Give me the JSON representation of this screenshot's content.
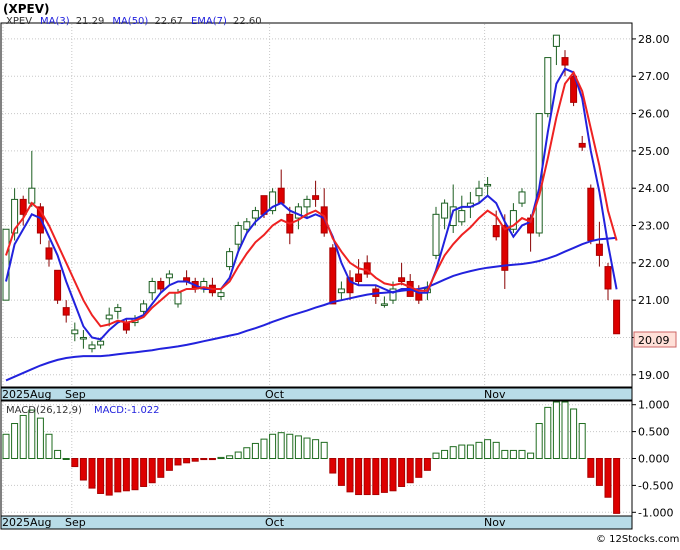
{
  "title": "(XPEV)",
  "price_panel": {
    "legend": {
      "symbol": "XPEV",
      "ma3_label": "MA(3)",
      "ma3_value": "21.29",
      "ma50_label": "MA(50)",
      "ma50_value": "22.67",
      "ema7_label": "EMA(7)",
      "ema7_value": "22.60"
    },
    "last_price_label": "20.09"
  },
  "macd_panel": {
    "legend": {
      "label": "MACD(26,12,9)",
      "value_label": "MACD:-1.022"
    }
  },
  "date_labels": [
    "2025Aug",
    "Sep",
    "Oct",
    "Nov"
  ],
  "credit": "© 12Stocks.com",
  "colors": {
    "up": "#2e7d32",
    "down": "#dd0000",
    "ma_fast": "#2222dd",
    "ema": "#ee2222",
    "macd_bar": "#1e6b1e",
    "macd_neg": "#dd0000",
    "axis_band": "#b8dce8",
    "grid": "#c8c8c8",
    "price_label_bg": "#ffe0d8"
  },
  "chart_data": [
    {
      "type": "candlestick",
      "panel": "price",
      "y_ticks": [
        19.0,
        20.0,
        21.0,
        22.0,
        23.0,
        24.0,
        25.0,
        26.0,
        27.0,
        28.0
      ],
      "ylim": [
        18.7,
        28.4
      ],
      "ylabel_position": "right",
      "ohlc": [
        [
          21.0,
          22.9,
          21.0,
          22.9
        ],
        [
          22.8,
          24.0,
          22.6,
          23.7
        ],
        [
          23.7,
          23.8,
          23.0,
          23.3
        ],
        [
          23.6,
          25.0,
          23.5,
          24.0
        ],
        [
          23.5,
          23.6,
          22.5,
          22.8
        ],
        [
          22.4,
          22.6,
          21.9,
          22.1
        ],
        [
          21.8,
          21.8,
          20.9,
          21.0
        ],
        [
          20.8,
          21.0,
          20.4,
          20.6
        ],
        [
          20.1,
          20.4,
          19.9,
          20.2
        ],
        [
          20.0,
          20.2,
          19.7,
          20.0
        ],
        [
          19.7,
          19.9,
          19.6,
          19.8
        ],
        [
          19.8,
          20.0,
          19.7,
          19.9
        ],
        [
          20.5,
          20.8,
          20.3,
          20.6
        ],
        [
          20.7,
          20.9,
          20.5,
          20.8
        ],
        [
          20.4,
          20.5,
          20.1,
          20.2
        ],
        [
          20.4,
          20.6,
          20.3,
          20.5
        ],
        [
          20.7,
          21.0,
          20.6,
          20.9
        ],
        [
          21.2,
          21.6,
          21.0,
          21.5
        ],
        [
          21.5,
          21.6,
          21.2,
          21.3
        ],
        [
          21.6,
          21.8,
          21.4,
          21.7
        ],
        [
          20.9,
          21.3,
          20.8,
          21.2
        ],
        [
          21.6,
          21.8,
          21.4,
          21.5
        ],
        [
          21.5,
          21.6,
          21.2,
          21.3
        ],
        [
          21.3,
          21.6,
          21.2,
          21.5
        ],
        [
          21.4,
          21.6,
          21.1,
          21.2
        ],
        [
          21.1,
          21.3,
          21.0,
          21.2
        ],
        [
          21.9,
          22.4,
          21.8,
          22.3
        ],
        [
          22.5,
          23.1,
          22.3,
          23.0
        ],
        [
          22.9,
          23.2,
          22.8,
          23.1
        ],
        [
          23.2,
          23.5,
          23.0,
          23.4
        ],
        [
          23.8,
          23.8,
          23.2,
          23.3
        ],
        [
          23.4,
          24.0,
          23.3,
          23.9
        ],
        [
          24.0,
          24.5,
          23.6,
          23.6
        ],
        [
          23.3,
          23.5,
          22.5,
          22.8
        ],
        [
          23.2,
          23.6,
          22.9,
          23.5
        ],
        [
          23.5,
          23.8,
          23.2,
          23.7
        ],
        [
          23.8,
          24.2,
          23.5,
          23.7
        ],
        [
          23.5,
          24.0,
          22.7,
          22.8
        ],
        [
          22.4,
          22.5,
          20.9,
          20.9
        ],
        [
          21.2,
          21.5,
          21.0,
          21.3
        ],
        [
          21.6,
          21.8,
          21.0,
          21.2
        ],
        [
          21.7,
          22.1,
          21.4,
          21.5
        ],
        [
          22.0,
          22.2,
          21.6,
          21.7
        ],
        [
          21.3,
          21.4,
          20.9,
          21.1
        ],
        [
          20.9,
          21.1,
          20.8,
          20.9
        ],
        [
          21.0,
          21.5,
          20.9,
          21.3
        ],
        [
          21.6,
          22.0,
          21.4,
          21.5
        ],
        [
          21.5,
          21.7,
          21.1,
          21.1
        ],
        [
          21.2,
          21.4,
          20.9,
          21.0
        ],
        [
          21.2,
          21.5,
          21.0,
          21.3
        ],
        [
          22.2,
          23.5,
          22.1,
          23.3
        ],
        [
          23.2,
          23.7,
          22.9,
          23.6
        ],
        [
          23.0,
          24.1,
          22.8,
          23.5
        ],
        [
          23.1,
          23.8,
          23.0,
          23.4
        ],
        [
          23.5,
          23.9,
          23.2,
          23.6
        ],
        [
          23.8,
          24.2,
          23.6,
          24.0
        ],
        [
          24.1,
          24.3,
          23.8,
          24.1
        ],
        [
          23.0,
          23.4,
          22.6,
          22.7
        ],
        [
          23.0,
          23.3,
          21.3,
          21.8
        ],
        [
          22.9,
          23.6,
          22.8,
          23.4
        ],
        [
          23.6,
          24.0,
          23.5,
          23.9
        ],
        [
          23.2,
          23.3,
          22.3,
          22.8
        ],
        [
          22.8,
          26.0,
          22.7,
          26.0
        ],
        [
          26.0,
          27.5,
          25.9,
          27.5
        ],
        [
          27.8,
          28.1,
          27.3,
          28.1
        ],
        [
          27.5,
          27.7,
          27.0,
          27.3
        ],
        [
          27.0,
          27.1,
          26.2,
          26.3
        ],
        [
          25.2,
          25.4,
          25.0,
          25.1
        ],
        [
          24.0,
          24.1,
          22.5,
          22.6
        ],
        [
          22.5,
          23.1,
          21.9,
          22.2
        ],
        [
          21.9,
          22.0,
          21.0,
          21.3
        ],
        [
          21.0,
          21.0,
          20.1,
          20.1
        ]
      ],
      "series": [
        {
          "name": "MA(3)",
          "color": "#2222dd",
          "values": [
            21.5,
            22.5,
            22.9,
            23.3,
            23.2,
            22.7,
            22.2,
            21.5,
            20.9,
            20.3,
            20.0,
            19.95,
            20.2,
            20.4,
            20.5,
            20.5,
            20.6,
            20.9,
            21.2,
            21.4,
            21.5,
            21.5,
            21.4,
            21.3,
            21.3,
            21.3,
            21.6,
            22.3,
            22.8,
            23.1,
            23.3,
            23.5,
            23.6,
            23.4,
            23.3,
            23.2,
            23.3,
            23.2,
            22.7,
            22.0,
            21.5,
            21.4,
            21.4,
            21.4,
            21.3,
            21.2,
            21.3,
            21.3,
            21.2,
            21.2,
            21.8,
            22.6,
            23.4,
            23.5,
            23.5,
            23.6,
            23.8,
            23.6,
            23.1,
            22.7,
            23.0,
            23.1,
            24.0,
            25.5,
            26.8,
            27.2,
            27.1,
            26.4,
            25.0,
            23.9,
            22.5,
            21.29
          ]
        },
        {
          "name": "MA(50)",
          "color": "#2222dd",
          "values": [
            18.85,
            18.95,
            19.05,
            19.15,
            19.25,
            19.33,
            19.4,
            19.45,
            19.48,
            19.5,
            19.5,
            19.5,
            19.52,
            19.55,
            19.58,
            19.6,
            19.63,
            19.66,
            19.7,
            19.73,
            19.76,
            19.8,
            19.85,
            19.9,
            19.95,
            20.0,
            20.05,
            20.1,
            20.18,
            20.25,
            20.33,
            20.42,
            20.5,
            20.58,
            20.65,
            20.72,
            20.8,
            20.87,
            20.95,
            21.0,
            21.05,
            21.1,
            21.15,
            21.18,
            21.2,
            21.22,
            21.25,
            21.28,
            21.3,
            21.35,
            21.45,
            21.55,
            21.65,
            21.72,
            21.78,
            21.83,
            21.87,
            21.9,
            21.93,
            21.95,
            21.97,
            22.0,
            22.05,
            22.12,
            22.2,
            22.3,
            22.4,
            22.5,
            22.58,
            22.63,
            22.65,
            22.67
          ]
        },
        {
          "name": "EMA(7)",
          "color": "#ee2222",
          "values": [
            22.2,
            22.9,
            23.2,
            23.6,
            23.4,
            23.0,
            22.5,
            22.0,
            21.5,
            21.0,
            20.6,
            20.3,
            20.35,
            20.45,
            20.4,
            20.45,
            20.55,
            20.8,
            21.0,
            21.2,
            21.2,
            21.3,
            21.3,
            21.35,
            21.3,
            21.3,
            21.5,
            21.9,
            22.25,
            22.55,
            22.75,
            23.0,
            23.15,
            23.05,
            23.15,
            23.3,
            23.4,
            23.25,
            22.65,
            22.3,
            22.0,
            21.85,
            21.8,
            21.6,
            21.45,
            21.4,
            21.45,
            21.35,
            21.25,
            21.25,
            21.75,
            22.2,
            22.5,
            22.75,
            22.95,
            23.2,
            23.4,
            23.25,
            22.9,
            23.0,
            23.2,
            23.1,
            23.8,
            24.8,
            25.9,
            26.8,
            27.1,
            26.6,
            25.6,
            24.6,
            23.4,
            22.6
          ]
        }
      ]
    },
    {
      "type": "bar",
      "panel": "macd",
      "title": "MACD(26,12,9)",
      "y_ticks": [
        -1.0,
        -0.5,
        0.0,
        0.5,
        1.0
      ],
      "y_tick_labels": [
        "-1.000",
        "-0.500",
        "0.000",
        "0.500",
        "1.000"
      ],
      "ylim": [
        -1.05,
        1.05
      ],
      "values": [
        0.45,
        0.65,
        0.8,
        0.9,
        0.75,
        0.45,
        0.15,
        0.0,
        -0.15,
        -0.4,
        -0.55,
        -0.65,
        -0.68,
        -0.62,
        -0.6,
        -0.58,
        -0.52,
        -0.45,
        -0.35,
        -0.22,
        -0.12,
        -0.08,
        -0.05,
        -0.02,
        -0.02,
        0.02,
        0.05,
        0.12,
        0.2,
        0.28,
        0.36,
        0.45,
        0.48,
        0.45,
        0.42,
        0.38,
        0.35,
        0.3,
        -0.27,
        -0.5,
        -0.62,
        -0.67,
        -0.67,
        -0.67,
        -0.63,
        -0.6,
        -0.52,
        -0.45,
        -0.35,
        -0.22,
        0.1,
        0.15,
        0.22,
        0.25,
        0.25,
        0.3,
        0.35,
        0.3,
        0.15,
        0.15,
        0.15,
        0.1,
        0.65,
        0.95,
        1.05,
        1.05,
        0.92,
        0.65,
        -0.35,
        -0.5,
        -0.72,
        -1.02
      ]
    }
  ]
}
